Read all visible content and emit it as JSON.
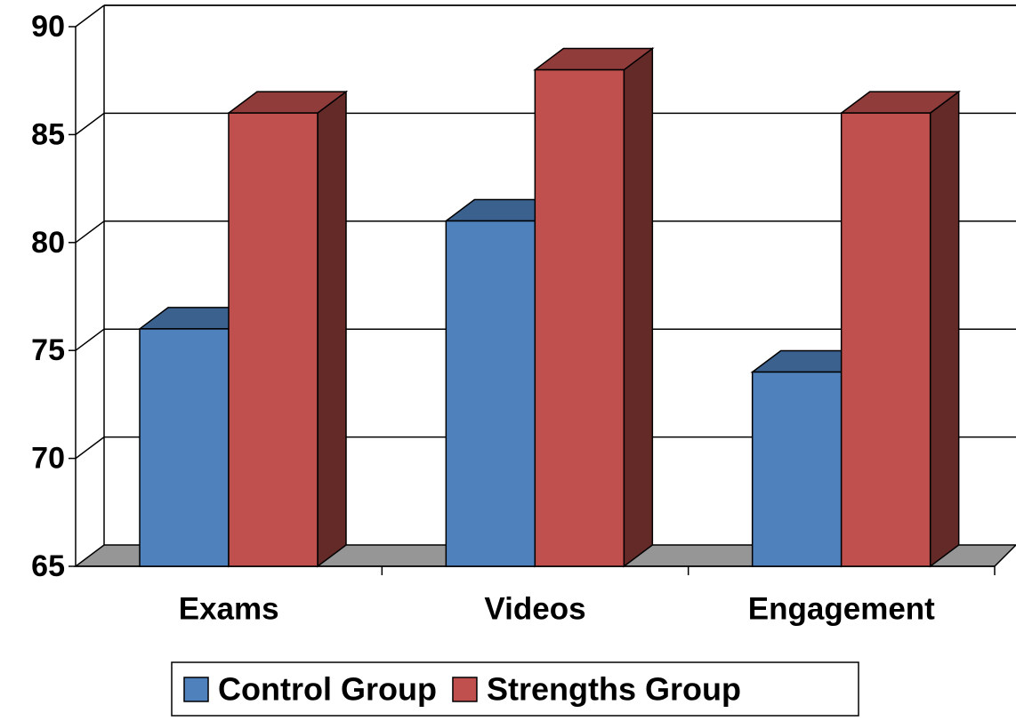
{
  "chart_data": {
    "type": "bar3d",
    "categories": [
      "Exams",
      "Videos",
      "Engagement"
    ],
    "series": [
      {
        "name": "Control Group",
        "color": "#4F81BD",
        "values": [
          76,
          81,
          74
        ]
      },
      {
        "name": "Strengths Group",
        "color": "#C0504D",
        "values": [
          86,
          88,
          86
        ]
      }
    ],
    "ylim": [
      65,
      90
    ],
    "yticks": [
      65,
      70,
      75,
      80,
      85,
      90
    ],
    "grid": true,
    "legend": "bottom"
  }
}
